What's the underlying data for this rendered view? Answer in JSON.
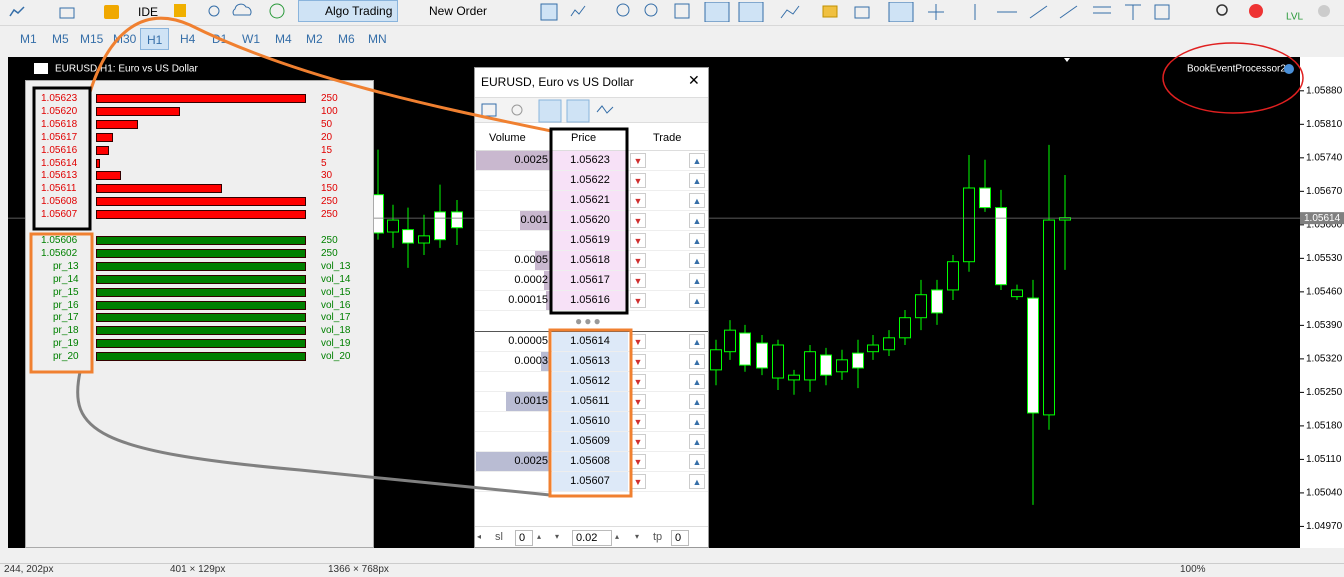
{
  "toolbar": {
    "ide": "IDE",
    "algo_trading": "Algo Trading",
    "new_order": "New Order"
  },
  "timeframes": {
    "items": [
      "M1",
      "M5",
      "M15",
      "M30",
      "H1",
      "H4",
      "D1",
      "W1",
      "M4",
      "M2",
      "M6",
      "MN"
    ],
    "active": 4
  },
  "chart_window_title": "EURUSD,H1: Euro vs US Dollar",
  "indicator_label": "BookEventProcessor2",
  "chart_data": {
    "type": "candlestick",
    "ylim": [
      1.04927,
      1.05936
    ],
    "yticks": [
      {
        "value": 1.0588,
        "label": "1.05880"
      },
      {
        "value": 1.0581,
        "label": "1.05810"
      },
      {
        "value": 1.0574,
        "label": "1.05740"
      },
      {
        "value": 1.0567,
        "label": "1.05670"
      },
      {
        "value": 1.056,
        "label": "1.05600"
      },
      {
        "value": 1.0553,
        "label": "1.05530"
      },
      {
        "value": 1.0546,
        "label": "1.05460"
      },
      {
        "value": 1.0539,
        "label": "1.05390"
      },
      {
        "value": 1.0532,
        "label": "1.05320"
      },
      {
        "value": 1.0525,
        "label": "1.05250"
      },
      {
        "value": 1.0518,
        "label": "1.05180"
      },
      {
        "value": 1.0511,
        "label": "1.05110"
      },
      {
        "value": 1.0504,
        "label": "1.05040"
      },
      {
        "value": 1.0497,
        "label": "1.04970"
      }
    ],
    "current_price": 1.05614,
    "open": [
      1.05663,
      1.05585,
      1.0559,
      1.05562,
      1.05627,
      1.05627,
      1.05297,
      1.05335,
      1.05374,
      1.05353,
      1.0528,
      1.05276,
      1.05276,
      1.05328,
      1.05293,
      1.05332,
      1.05335,
      1.05339,
      1.05364,
      1.05406,
      1.05464,
      1.05464,
      1.05523,
      1.05677,
      1.05636,
      1.0545,
      1.05447,
      1.05203,
      1.0561
    ],
    "high": [
      1.05757,
      1.05642,
      1.05636,
      1.05621,
      1.05684,
      1.05652,
      1.0536,
      1.05401,
      1.05391,
      1.0537,
      1.0536,
      1.05297,
      1.05349,
      1.05343,
      1.05339,
      1.0536,
      1.0537,
      1.0538,
      1.05422,
      1.05485,
      1.05485,
      1.05537,
      1.05746,
      1.05736,
      1.05673,
      1.05475,
      1.05485,
      1.05767,
      1.05704
    ],
    "low": [
      1.05569,
      1.05552,
      1.0551,
      1.05537,
      1.05552,
      1.05558,
      1.05265,
      1.05318,
      1.05293,
      1.05286,
      1.05255,
      1.05245,
      1.05251,
      1.05265,
      1.05276,
      1.05259,
      1.05318,
      1.05326,
      1.05349,
      1.0538,
      1.05391,
      1.05443,
      1.05502,
      1.05627,
      1.05464,
      1.05443,
      1.05015,
      1.05172,
      1.05506
    ],
    "close": [
      1.05583,
      1.0561,
      1.05562,
      1.05577,
      1.05569,
      1.05594,
      1.05339,
      1.0538,
      1.05307,
      1.05301,
      1.05349,
      1.05286,
      1.05335,
      1.05286,
      1.05318,
      1.05301,
      1.05349,
      1.05364,
      1.05406,
      1.05454,
      1.05416,
      1.05523,
      1.05677,
      1.05636,
      1.05475,
      1.05464,
      1.05207,
      1.0561,
      1.05615
    ],
    "colors": {
      "outline": "#00ff00",
      "bull_body": "#000000",
      "bear_body": "#ffffff"
    }
  },
  "book_panel": {
    "rows": [
      {
        "price": "1.05623",
        "volume": 250,
        "side": "sell"
      },
      {
        "price": "1.05620",
        "volume": 100,
        "side": "sell"
      },
      {
        "price": "1.05618",
        "volume": 50,
        "side": "sell"
      },
      {
        "price": "1.05617",
        "volume": 20,
        "side": "sell"
      },
      {
        "price": "1.05616",
        "volume": 15,
        "side": "sell"
      },
      {
        "price": "1.05614",
        "volume": 5,
        "side": "sell"
      },
      {
        "price": "1.05613",
        "volume": 30,
        "side": "sell"
      },
      {
        "price": "1.05611",
        "volume": 150,
        "side": "sell"
      },
      {
        "price": "1.05608",
        "volume": 250,
        "side": "sell"
      },
      {
        "price": "1.05607",
        "volume": 250,
        "side": "sell"
      },
      {
        "price": "1.05606",
        "volume": 250,
        "side": "buy"
      },
      {
        "price": "1.05602",
        "volume": 250,
        "side": "buy"
      },
      {
        "price": "pr_13",
        "volume": "vol_13",
        "side": "buy"
      },
      {
        "price": "pr_14",
        "volume": "vol_14",
        "side": "buy"
      },
      {
        "price": "pr_15",
        "volume": "vol_15",
        "side": "buy"
      },
      {
        "price": "pr_16",
        "volume": "vol_16",
        "side": "buy"
      },
      {
        "price": "pr_17",
        "volume": "vol_17",
        "side": "buy"
      },
      {
        "price": "pr_18",
        "volume": "vol_18",
        "side": "buy"
      },
      {
        "price": "pr_19",
        "volume": "vol_19",
        "side": "buy"
      },
      {
        "price": "pr_20",
        "volume": "vol_20",
        "side": "buy"
      }
    ]
  },
  "dom": {
    "title": "EURUSD, Euro vs US Dollar",
    "headers": [
      "Volume",
      "Price",
      "Trade"
    ],
    "asks": [
      {
        "volume": 0.0025,
        "price": "1.05623"
      },
      {
        "volume": null,
        "price": "1.05622"
      },
      {
        "volume": null,
        "price": "1.05621"
      },
      {
        "volume": 0.001,
        "price": "1.05620"
      },
      {
        "volume": null,
        "price": "1.05619"
      },
      {
        "volume": 0.0005,
        "price": "1.05618"
      },
      {
        "volume": 0.0002,
        "price": "1.05617"
      },
      {
        "volume": 0.00015,
        "price": "1.05616"
      }
    ],
    "bids": [
      {
        "volume": 5e-05,
        "price": "1.05614"
      },
      {
        "volume": 0.0003,
        "price": "1.05613"
      },
      {
        "volume": null,
        "price": "1.05612"
      },
      {
        "volume": 0.0015,
        "price": "1.05611"
      },
      {
        "volume": null,
        "price": "1.05610"
      },
      {
        "volume": null,
        "price": "1.05609"
      },
      {
        "volume": 0.0025,
        "price": "1.05608"
      },
      {
        "volume": null,
        "price": "1.05607"
      }
    ],
    "controls": {
      "sl_label": "sl",
      "sl": 0,
      "lot": 0.02,
      "tp_label": "tp",
      "tp": 0
    }
  },
  "status_bar": [
    "244, 202px",
    "401 × 129px",
    "1366 × 768px",
    "100%"
  ]
}
